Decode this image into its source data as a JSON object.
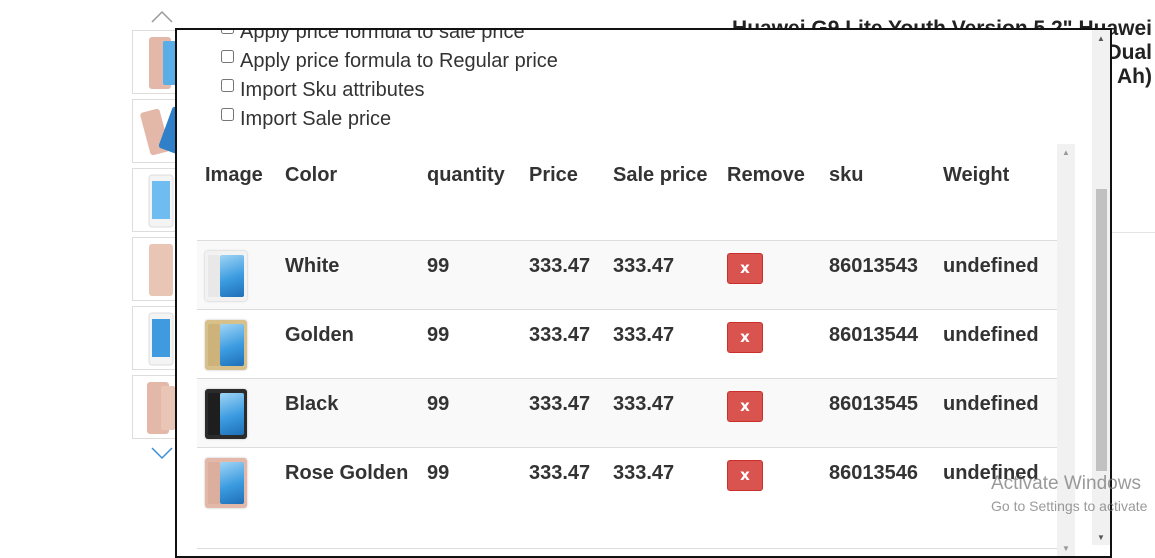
{
  "background": {
    "title_lines": [
      "Huawei G9 Lite Youth Version 5.2\" Huawei",
      "Dual",
      "Ah)"
    ],
    "thumbnails": [
      "rose-golden-phone",
      "rose-golden-phone-angled",
      "white-phone",
      "rose-golden-phone-back",
      "white-phone-front",
      "rose-golden-phone-pair"
    ]
  },
  "options": [
    {
      "label": "Apply price formula to sale price",
      "checked": false
    },
    {
      "label": "Apply price formula to Regular price",
      "checked": false
    },
    {
      "label": "Import Sku attributes",
      "checked": false
    },
    {
      "label": "Import Sale price",
      "checked": false
    }
  ],
  "table": {
    "headers": {
      "image": "Image",
      "color": "Color",
      "quantity": "quantity",
      "price": "Price",
      "sale_price": "Sale price",
      "remove": "Remove",
      "sku": "sku",
      "weight": "Weight"
    },
    "rows": [
      {
        "color": "White",
        "quantity": "99",
        "price": "333.47",
        "sale_price": "333.47",
        "remove": "x",
        "sku": "86013543",
        "weight": "undefined",
        "body_color": "#f2f2f2"
      },
      {
        "color": "Golden",
        "quantity": "99",
        "price": "333.47",
        "sale_price": "333.47",
        "remove": "x",
        "sku": "86013544",
        "weight": "undefined",
        "body_color": "#d8c08a"
      },
      {
        "color": "Black",
        "quantity": "99",
        "price": "333.47",
        "sale_price": "333.47",
        "remove": "x",
        "sku": "86013545",
        "weight": "undefined",
        "body_color": "#2b2b2b"
      },
      {
        "color": "Rose Golden",
        "quantity": "99",
        "price": "333.47",
        "sale_price": "333.47",
        "remove": "x",
        "sku": "86013546",
        "weight": "undefined",
        "body_color": "#e3b8a8"
      }
    ]
  },
  "watermark": {
    "line1": "Activate Windows",
    "line2": "Go to Settings to activate"
  },
  "colors": {
    "remove_button": "#d9534f",
    "modal_border": "#111111",
    "stripe": "#f9f9f9"
  }
}
